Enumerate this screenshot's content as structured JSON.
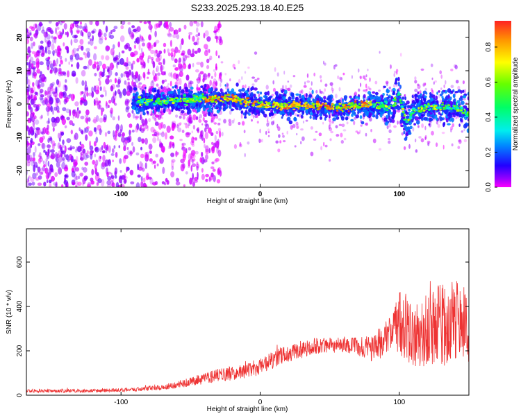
{
  "title": "S233.2025.293.18.40.E25",
  "chart_data": [
    {
      "type": "heatmap",
      "xlabel": "Height of straight line (km)",
      "ylabel": "Frequency (Hz)",
      "xlim": [
        -168,
        150
      ],
      "ylim": [
        -25,
        25
      ],
      "xticks": [
        -100,
        0,
        100
      ],
      "yticks": [
        -20,
        -10,
        0,
        10,
        20
      ],
      "colorbar": {
        "label": "Normalized spectral amplitude",
        "range": [
          0.0,
          0.95
        ],
        "ticks": [
          0.0,
          0.2,
          0.4,
          0.6,
          0.8
        ]
      },
      "ridge": {
        "x": [
          -90,
          -60,
          -40,
          -20,
          0,
          20,
          40,
          60,
          80,
          95,
          100,
          105,
          110,
          120,
          140,
          150
        ],
        "y": [
          0.5,
          1,
          1.5,
          1.5,
          0,
          -0.5,
          -0.5,
          -1,
          0,
          -1,
          3,
          -6,
          -2,
          -1,
          -1,
          -3
        ],
        "width": [
          3,
          3,
          3,
          3,
          3,
          3,
          3,
          3,
          3,
          4,
          5,
          5,
          4,
          4,
          4,
          5
        ]
      },
      "scatter_region": {
        "xrange": [
          -168,
          -40
        ],
        "amplitude": "low"
      }
    },
    {
      "type": "line",
      "xlabel": "Height of straight line (km)",
      "ylabel": "SNR (10 * v/v)",
      "xlim": [
        -168,
        150
      ],
      "ylim": [
        0,
        750
      ],
      "xticks": [
        -100,
        0,
        100
      ],
      "yticks": [
        0,
        200,
        400,
        600
      ],
      "color": "#ee3333",
      "envelope": {
        "x": [
          -168,
          -120,
          -90,
          -70,
          -50,
          -30,
          -10,
          0,
          20,
          40,
          60,
          70,
          80,
          90,
          100,
          105,
          110,
          120,
          130,
          140,
          150
        ],
        "mid": [
          20,
          20,
          25,
          35,
          60,
          90,
          110,
          130,
          190,
          220,
          230,
          220,
          210,
          250,
          330,
          300,
          270,
          300,
          320,
          330,
          310
        ],
        "amp": [
          8,
          8,
          8,
          12,
          20,
          30,
          35,
          40,
          40,
          35,
          35,
          40,
          60,
          80,
          140,
          160,
          140,
          170,
          190,
          190,
          170
        ]
      }
    }
  ]
}
